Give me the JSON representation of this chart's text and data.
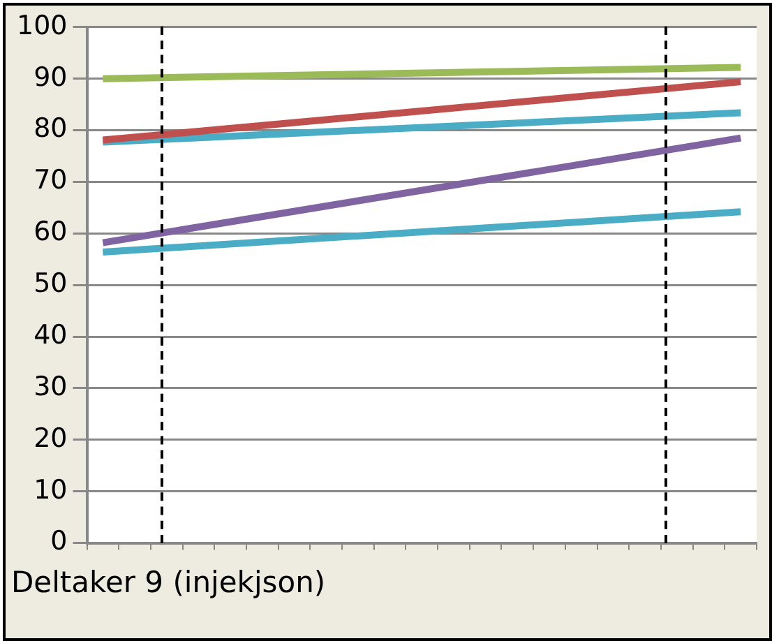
{
  "chart_data": {
    "type": "line",
    "title": "Deltaker 9 (injekjson)",
    "categories": [
      null,
      null,
      null,
      null,
      null,
      null,
      null,
      null,
      null,
      null,
      null,
      null,
      null,
      null,
      null,
      null,
      null,
      null,
      null,
      null,
      null
    ],
    "ylim": [
      0,
      100
    ],
    "yticks": [
      0,
      10,
      20,
      30,
      40,
      50,
      60,
      70,
      80,
      90,
      100
    ],
    "tick_labels": "y",
    "grid": "y",
    "legend": false,
    "marker": "none",
    "line_style": "solid",
    "series": [
      {
        "color": "#9bbb59",
        "values": [
          90,
          null,
          null,
          null,
          null,
          null,
          null,
          null,
          null,
          null,
          null,
          null,
          null,
          null,
          null,
          null,
          null,
          null,
          null,
          null,
          92.2
        ]
      },
      {
        "color": "#c0504d",
        "values": [
          78.1,
          null,
          null,
          null,
          null,
          null,
          null,
          null,
          null,
          null,
          null,
          null,
          null,
          null,
          null,
          null,
          null,
          null,
          null,
          null,
          89.4
        ]
      },
      {
        "color": "#4bacc6",
        "values": [
          77.7,
          null,
          null,
          null,
          null,
          null,
          null,
          null,
          null,
          null,
          null,
          null,
          null,
          null,
          null,
          null,
          null,
          null,
          null,
          null,
          83.4
        ]
      },
      {
        "color": "#8064a2",
        "values": [
          58.2,
          null,
          null,
          null,
          null,
          null,
          null,
          null,
          null,
          null,
          null,
          null,
          null,
          null,
          null,
          null,
          null,
          null,
          null,
          null,
          78.5
        ]
      },
      {
        "color": "#4bacc6",
        "values": [
          56.4,
          null,
          null,
          null,
          null,
          null,
          null,
          null,
          null,
          null,
          null,
          null,
          null,
          null,
          null,
          null,
          null,
          null,
          null,
          null,
          64.2
        ]
      }
    ]
  }
}
